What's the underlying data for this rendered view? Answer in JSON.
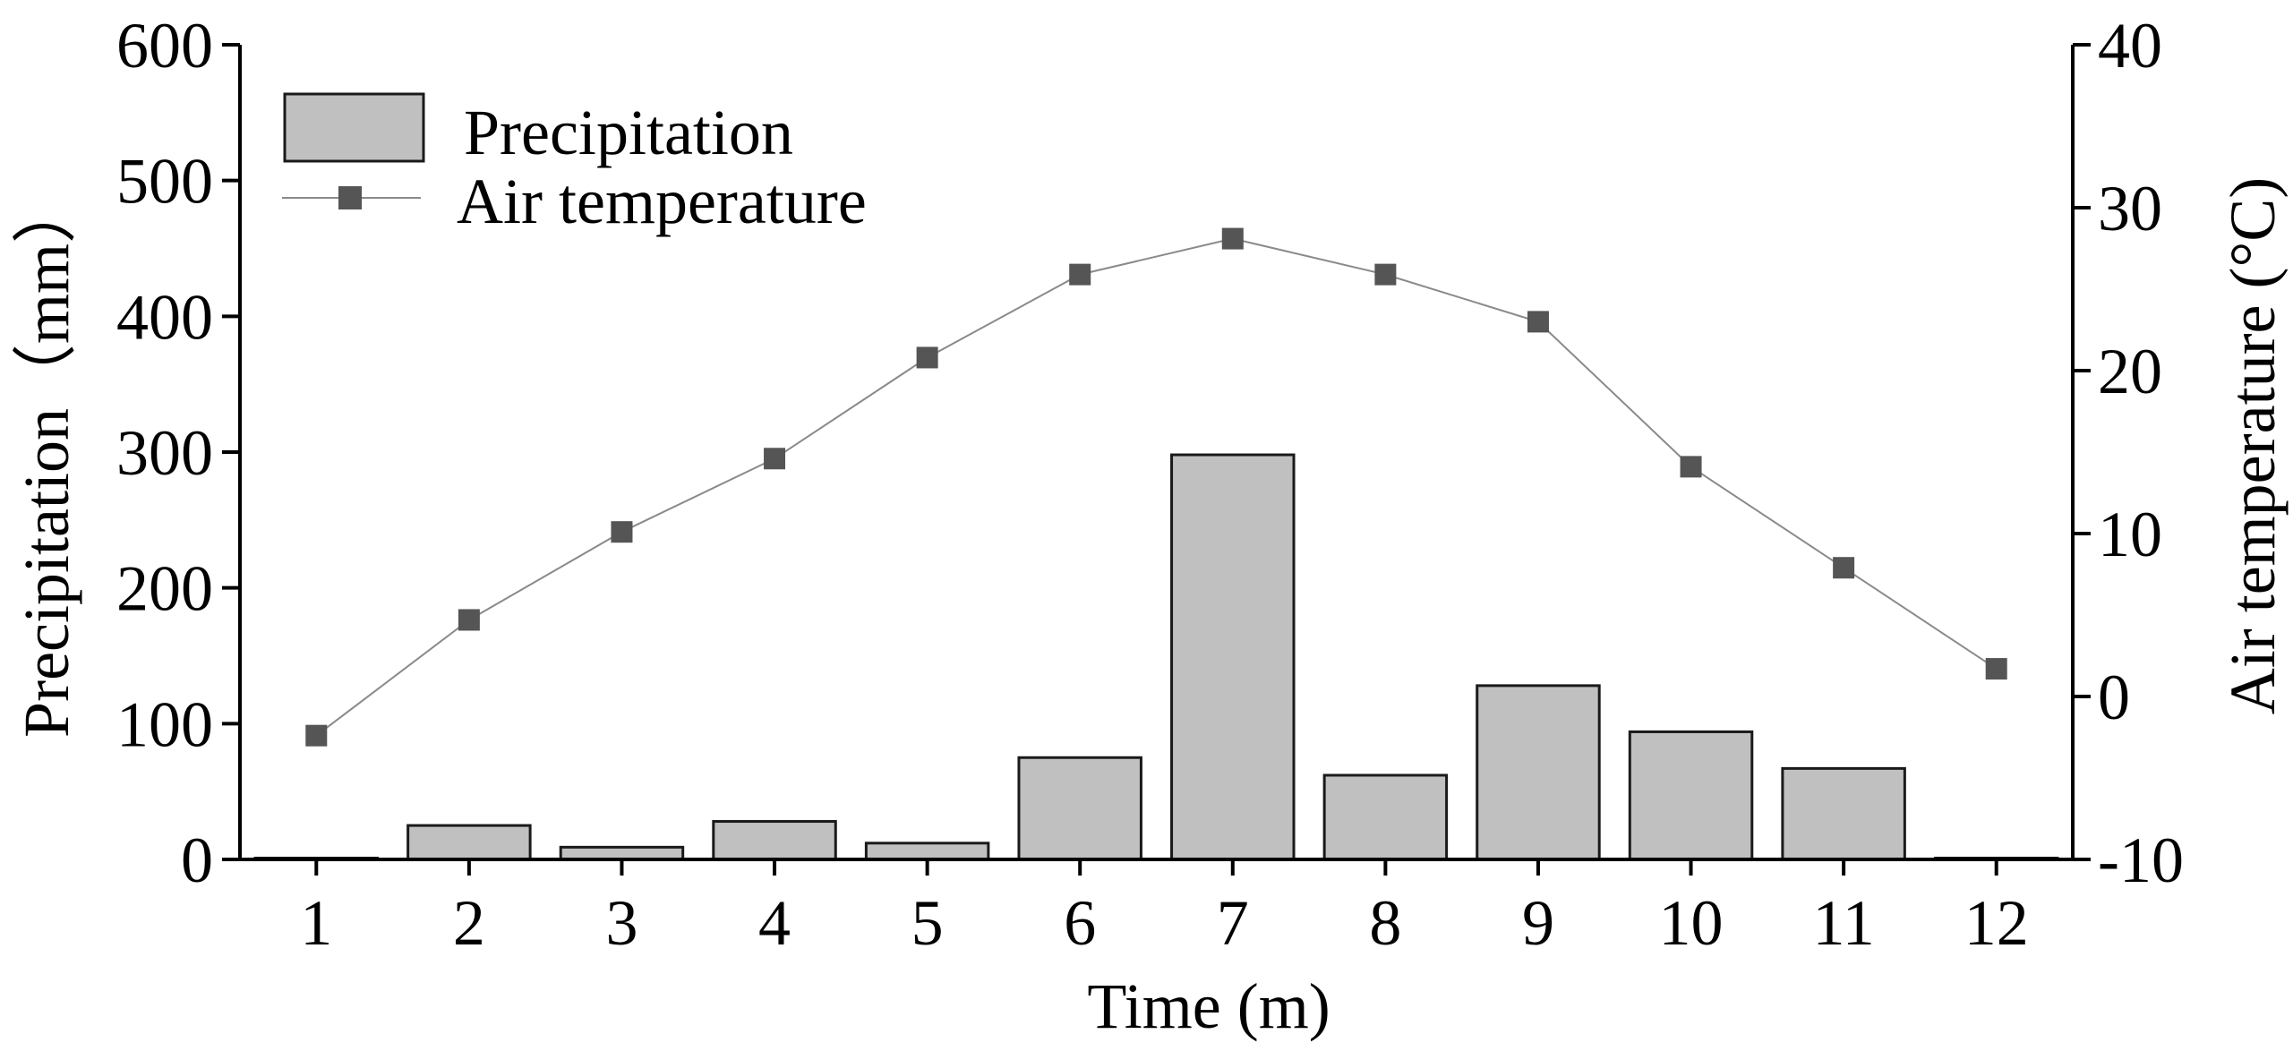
{
  "chart_data": {
    "type": "bar+line",
    "xlabel": "Time (m)",
    "categories": [
      "1",
      "2",
      "3",
      "4",
      "5",
      "6",
      "7",
      "8",
      "9",
      "10",
      "11",
      "12"
    ],
    "series": [
      {
        "name": "Precipitation",
        "type": "bar",
        "axis": "left",
        "values": [
          1,
          25,
          9,
          28,
          12,
          75,
          298,
          62,
          128,
          94,
          67,
          1
        ]
      },
      {
        "name": "Air temperature",
        "type": "line",
        "axis": "right",
        "values": [
          -2.4,
          4.7,
          10.1,
          14.6,
          20.8,
          25.9,
          28.1,
          25.9,
          23.0,
          14.1,
          7.9,
          1.7
        ]
      }
    ],
    "y_left": {
      "label": "Precipitation（mm）",
      "ylim": [
        0,
        600
      ],
      "ticks": [
        "0",
        "100",
        "200",
        "300",
        "400",
        "500",
        "600"
      ]
    },
    "y_right": {
      "label": "Air temperature (°C)",
      "ylim": [
        -10,
        40
      ],
      "ticks": [
        "-10",
        "0",
        "10",
        "20",
        "30",
        "40"
      ]
    },
    "legend": {
      "position": "top-left",
      "entries": [
        "Precipitation",
        "Air temperature"
      ]
    },
    "colors": {
      "bar_fill": "#c0c0c0",
      "bar_stroke": "#1a1a1a",
      "line": "#8a8a8a",
      "marker": "#555555",
      "axis": "#000000"
    }
  }
}
